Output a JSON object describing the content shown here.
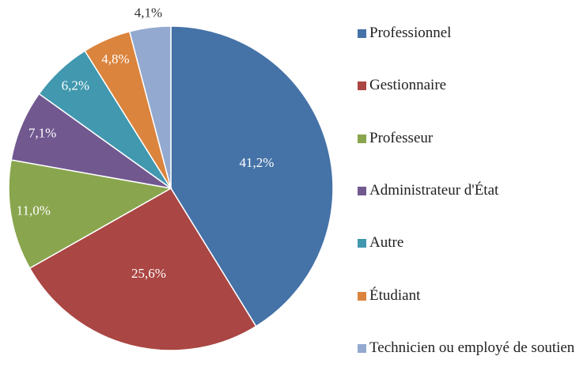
{
  "chart_data": {
    "type": "pie",
    "categories": [
      "Professionnel",
      "Gestionnaire",
      "Professeur",
      "Administrateur d'État",
      "Autre",
      "Étudiant",
      "Technicien ou employé de soutien"
    ],
    "values": [
      41.2,
      25.6,
      11.0,
      7.1,
      6.2,
      4.8,
      4.1
    ],
    "value_labels": [
      "41,2%",
      "25,6%",
      "11,0%",
      "7,1%",
      "6,2%",
      "4,8%",
      "4,1%"
    ],
    "colors": [
      "#4572a7",
      "#aa4643",
      "#89a54e",
      "#71588f",
      "#4198af",
      "#db843d",
      "#93a9cf"
    ],
    "legend": "right"
  }
}
